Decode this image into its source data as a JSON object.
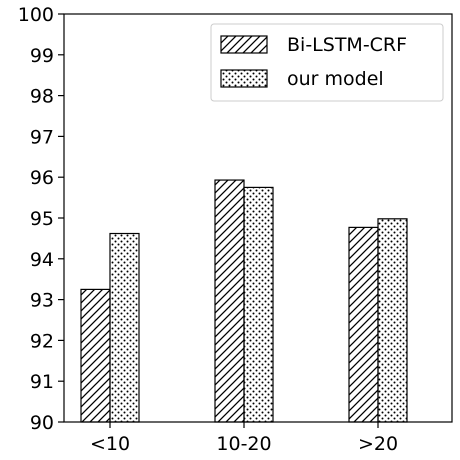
{
  "chart_data": {
    "type": "bar",
    "categories": [
      "<10",
      "10-20",
      ">20"
    ],
    "series": [
      {
        "name": "Bi-LSTM-CRF",
        "values": [
          93.25,
          95.93,
          94.77
        ],
        "pattern": "hatch"
      },
      {
        "name": "our model",
        "values": [
          94.62,
          95.75,
          94.98
        ],
        "pattern": "dots"
      }
    ],
    "ylim": [
      90,
      100
    ],
    "yticks": [
      90,
      91,
      92,
      93,
      94,
      95,
      96,
      97,
      98,
      99,
      100
    ],
    "grid": false,
    "legend_position": "top-right",
    "colors": {
      "bar_fill": "#ffffff",
      "stroke": "#000000"
    }
  }
}
